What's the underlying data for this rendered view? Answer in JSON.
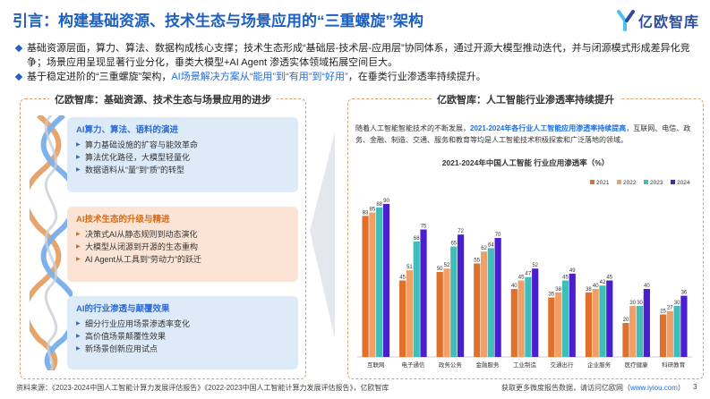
{
  "page": {
    "title": "引言：构建基础资源、技术生态与场景应用的“三重螺旋”架构",
    "brand": "亿欧智库",
    "page_number": "3"
  },
  "bullets": [
    {
      "text": "基础资源层面，算力、算法、数据构成核心支撑；技术生态形成“基础层-技术层-应用层”协同体系，通过开源大模型推动迭代，并与闭源模式形成差异化竞争；场景应用呈现显著行业分化，垂类大模型+AI Agent 渗透实体领域拓展空间巨大。"
    },
    {
      "pre": "基于稳定进阶的“三重螺旋”架构，",
      "highlight": "AI场景解决方案从“能用”到“有用”到“好用”",
      "post": "，在垂类行业渗透率持续提升。"
    }
  ],
  "left_panel": {
    "title": "亿欧智库：基础资源、技术生态与场景应用的进步",
    "cards": [
      {
        "title": "AI算力、算法、语料的演进",
        "items": [
          "算力基础设施的扩容与能效革命",
          "算法优化路径，大模型轻量化",
          "数据语料从“量”到“质”的转型"
        ]
      },
      {
        "title": "AI技术生态的升级与精进",
        "items": [
          "决策式AI从静态规则到动态演化",
          "大模型从闭源到开源的生态重构",
          "AI Agent从工具到“劳动力”的跃迁"
        ]
      },
      {
        "title": "AI的行业渗透与颠覆效果",
        "items": [
          "细分行业应用场景渗透率变化",
          "高价值场景颠覆性效果",
          "新场景创新应用试点"
        ]
      }
    ]
  },
  "right_panel": {
    "title": "亿欧智库：人工智能行业渗透率持续提升",
    "desc_pre": "随着人工智能智能技术的不断发展，",
    "desc_highlight": "2021-2024年各行业人工智能应用渗透率持续提高",
    "desc_post": "，互联网、电信、政务、金融、制造、交通、服务和教育等均是人工智能技术积极探索和广泛落地的领域。"
  },
  "chart_data": {
    "type": "bar",
    "title": "2021-2024年中国人工智能 行业应用渗透率（%）",
    "categories": [
      "互联网",
      "电子通信",
      "政务公务",
      "金融服务",
      "工业制造",
      "交通出行",
      "企业服务",
      "医疗健康",
      "科研教育"
    ],
    "series": [
      {
        "name": "2021",
        "color": "#e0702a",
        "values": [
          83,
          45,
          50,
          55,
          40,
          35,
          38,
          20,
          25
        ]
      },
      {
        "name": "2022",
        "color": "#f0a066",
        "values": [
          85,
          51,
          52,
          62,
          45,
          38,
          40,
          30,
          27
        ]
      },
      {
        "name": "2023",
        "color": "#3fbdb8",
        "values": [
          88,
          68,
          65,
          64,
          47,
          45,
          42,
          30,
          30
        ]
      },
      {
        "name": "2024",
        "color": "#4b1fcf",
        "values": [
          90,
          75,
          72,
          70,
          52,
          49,
          45,
          40,
          36
        ]
      }
    ],
    "ylim": [
      0,
      100
    ]
  },
  "footer": {
    "source": "资料来源：《2023-2024中国人工智能计算力发展评估报告》《2022-2023中国人工智能计算力发展评估报告》，亿欧智库",
    "right_pre": "获取更多微度报告数据，请访问亿欧网（",
    "right_link": "www.iyiou.com",
    "right_post": "）"
  }
}
